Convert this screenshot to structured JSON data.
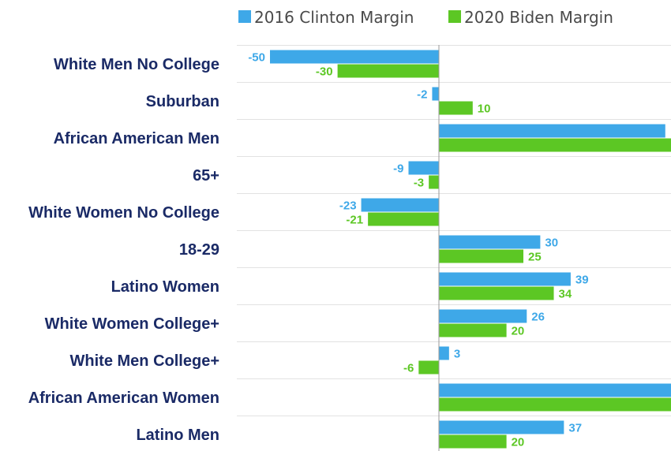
{
  "chart_data": {
    "type": "bar",
    "orientation": "horizontal",
    "categories": [
      "White Men No College",
      "Suburban",
      "African American Men",
      "65+",
      "White Women No College",
      "18-29",
      "Latino Women",
      "White Women College+",
      "White Men College+",
      "African American Women",
      "Latino Men"
    ],
    "series": [
      {
        "name": "2016 Clinton Margin",
        "color": "#3ea8e8",
        "values": [
          -50,
          -2,
          67,
          -9,
          -23,
          30,
          39,
          26,
          3,
          70,
          37
        ],
        "labels": [
          "-50",
          "-2",
          "",
          "-9",
          "-23",
          "30",
          "39",
          "26",
          "3",
          "",
          "37"
        ]
      },
      {
        "name": "2020 Biden Margin",
        "color": "#5cc724",
        "values": [
          -30,
          10,
          70,
          -3,
          -21,
          25,
          34,
          20,
          -6,
          70,
          20
        ],
        "labels": [
          "-30",
          "10",
          "",
          "-3",
          "-21",
          "25",
          "34",
          "20",
          "-6",
          "",
          "20"
        ]
      }
    ],
    "legend_position": "top",
    "grid": true
  }
}
